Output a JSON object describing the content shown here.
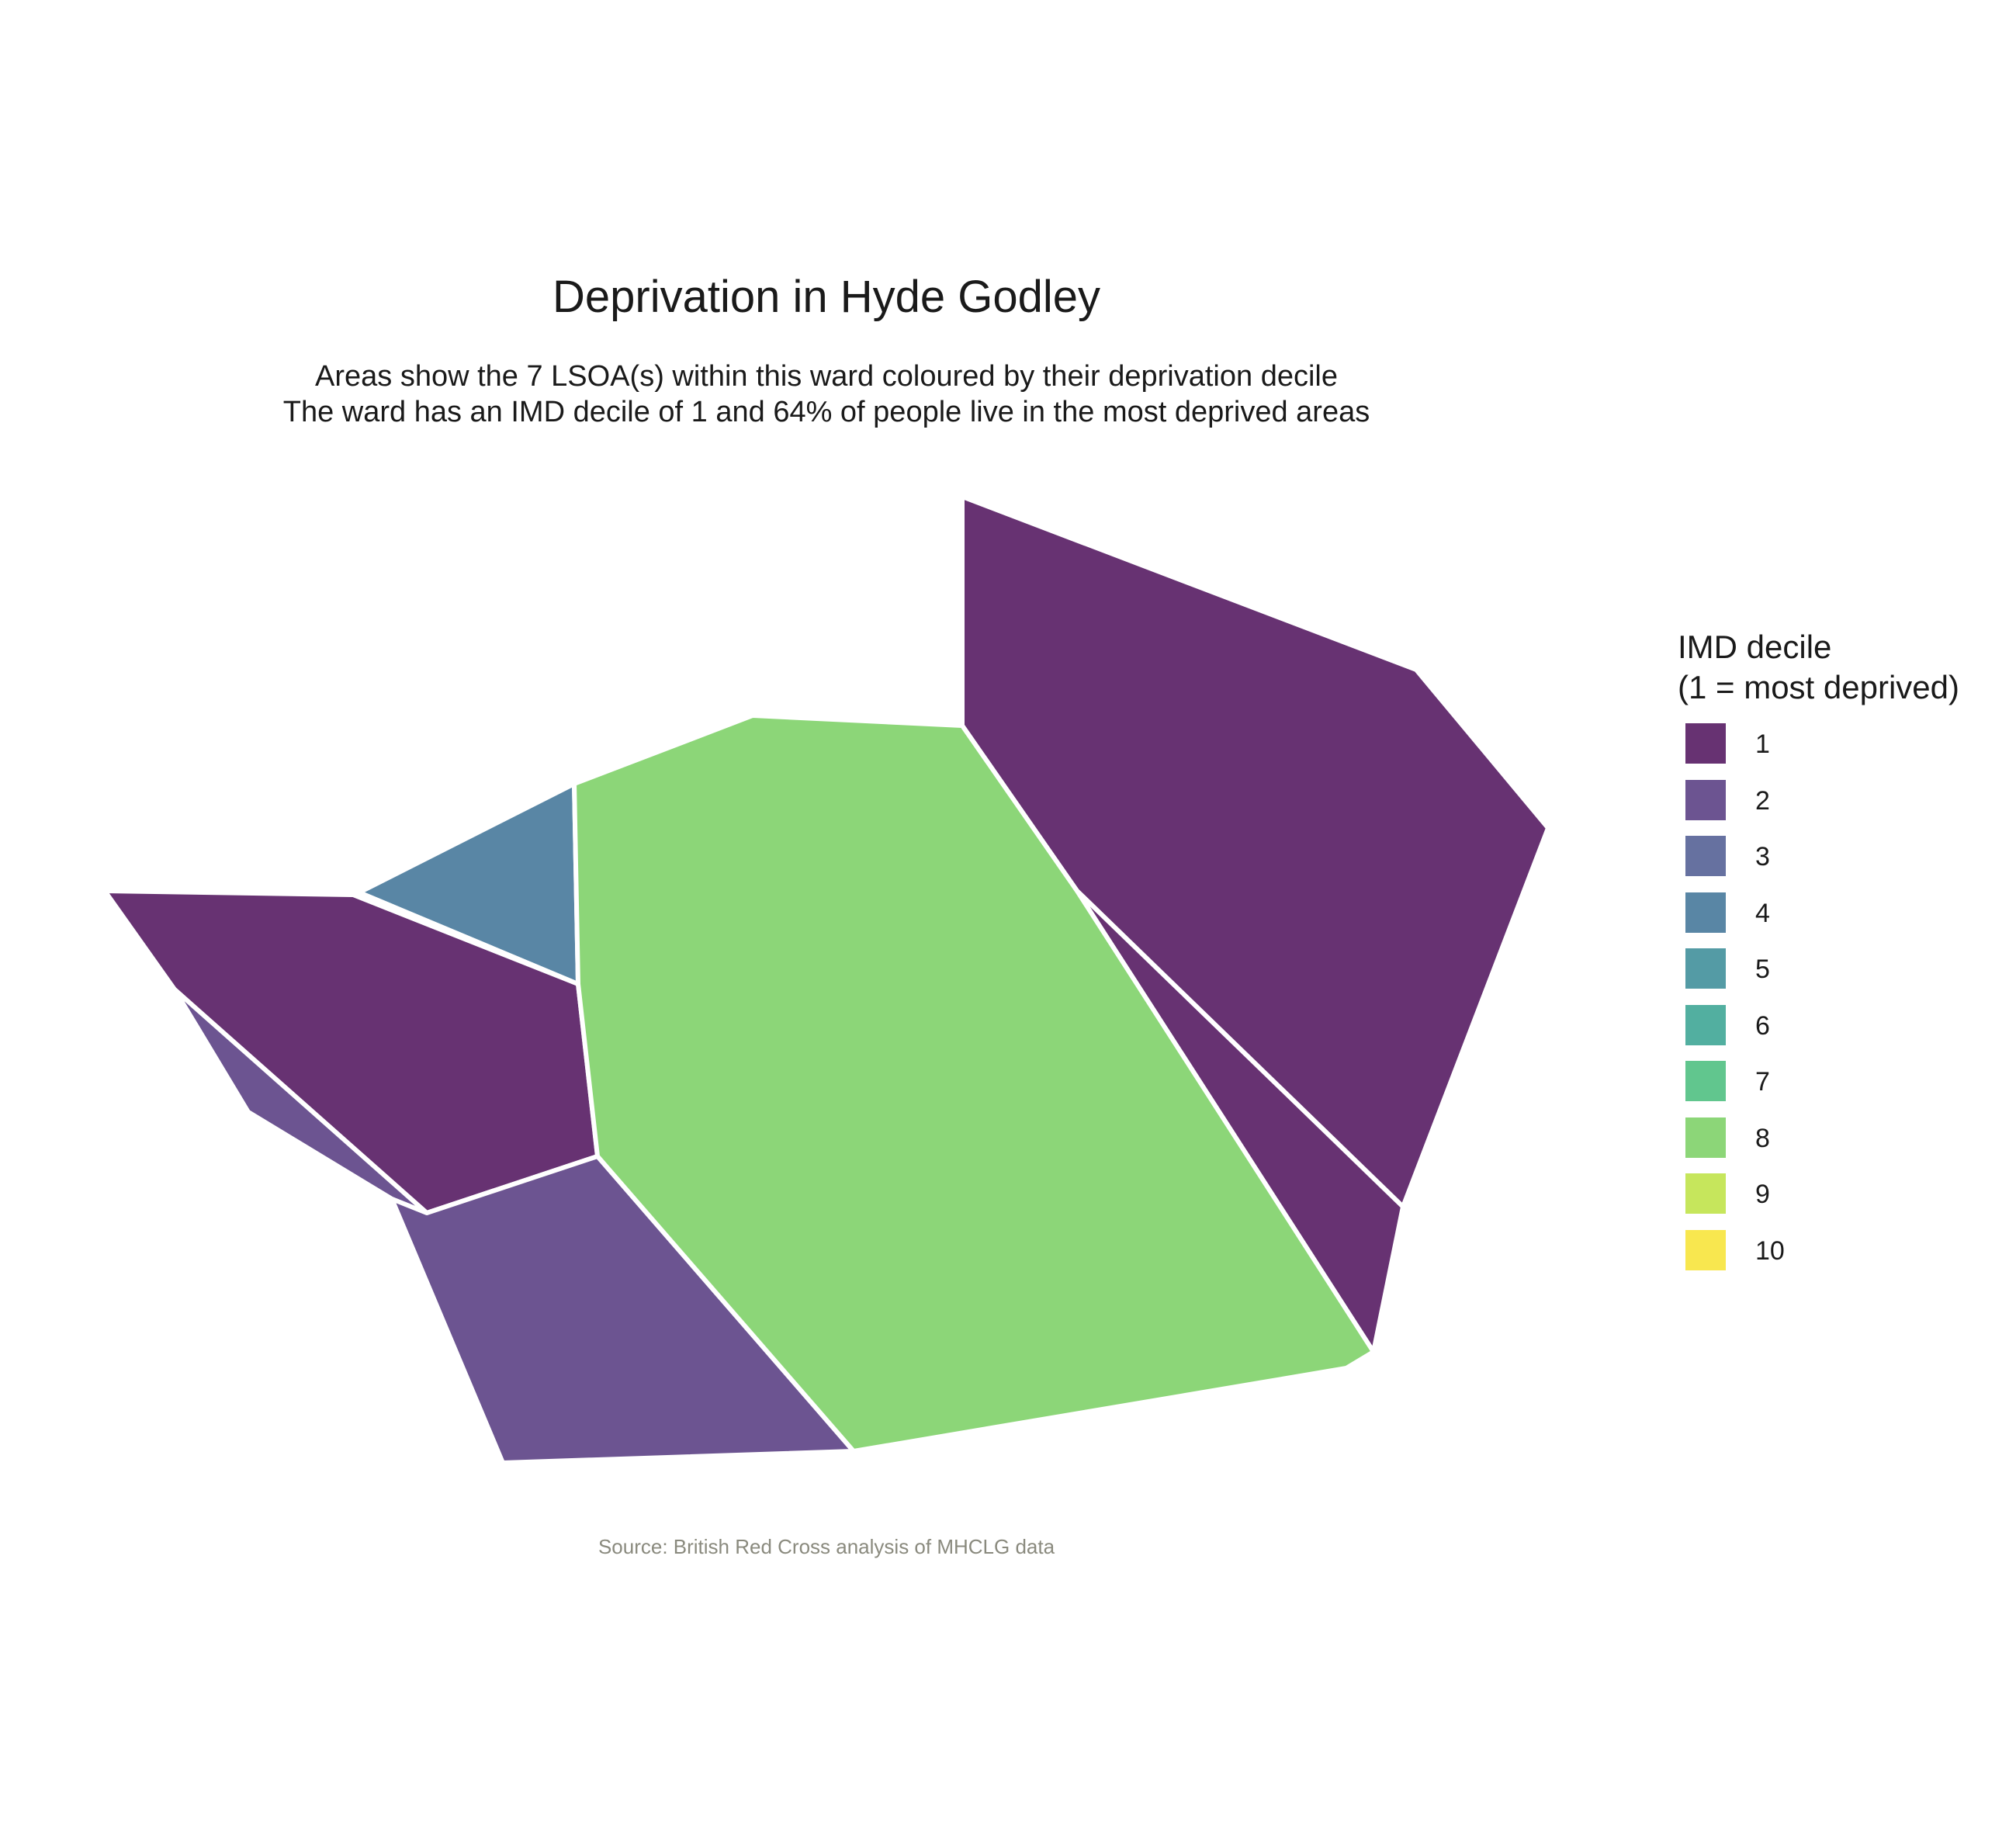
{
  "title": "Deprivation in Hyde Godley",
  "subtitle_line1": "Areas show the 7 LSOA(s) within this ward coloured by their deprivation decile",
  "subtitle_line2": "The ward has an IMD decile of 1 and 64% of people live in the most deprived areas",
  "caption": "Source: British Red Cross analysis of MHCLG data",
  "legend": {
    "title_line1": "IMD decile",
    "title_line2": "(1 = most deprived)",
    "items": [
      {
        "label": "1",
        "color": "#673272"
      },
      {
        "label": "2",
        "color": "#6c5491"
      },
      {
        "label": "3",
        "color": "#6671a0"
      },
      {
        "label": "4",
        "color": "#5986a5"
      },
      {
        "label": "5",
        "color": "#549ba5"
      },
      {
        "label": "6",
        "color": "#52afa0"
      },
      {
        "label": "7",
        "color": "#61c68e"
      },
      {
        "label": "8",
        "color": "#8cd678"
      },
      {
        "label": "9",
        "color": "#c6e65c"
      },
      {
        "label": "10",
        "color": "#f8e74f"
      }
    ]
  },
  "chart_data": {
    "type": "choropleth",
    "areas": [
      {
        "decile": 1
      },
      {
        "decile": 1
      },
      {
        "decile": 1
      },
      {
        "decile": 2
      },
      {
        "decile": 2
      },
      {
        "decile": 4
      },
      {
        "decile": 8
      }
    ]
  }
}
